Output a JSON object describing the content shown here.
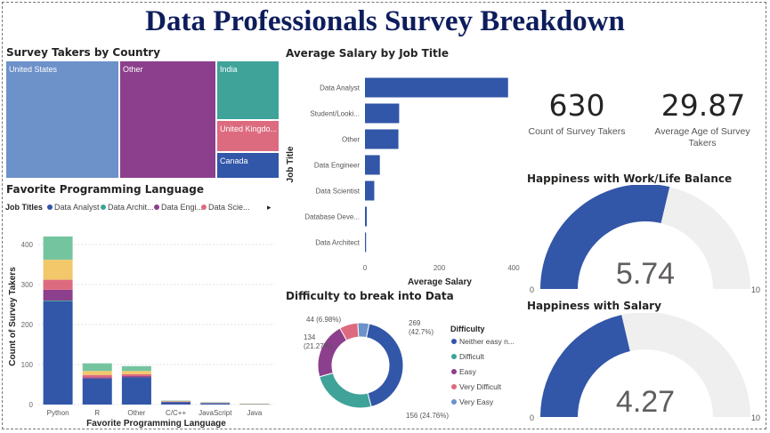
{
  "title": "Data Professionals Survey Breakdown",
  "treemap": {
    "title": "Survey Takers by Country",
    "items": [
      {
        "label": "United States",
        "color": "#6d91c9"
      },
      {
        "label": "Other",
        "color": "#8c3f8c"
      },
      {
        "label": "India",
        "color": "#3fa39a"
      },
      {
        "label": "United Kingdo...",
        "color": "#dd6b7f"
      },
      {
        "label": "Canada",
        "color": "#3256a8"
      }
    ]
  },
  "language_chart": {
    "title": "Favorite Programming Language",
    "legend_title": "Job Titles",
    "legend_more": "▸"
  },
  "salary_chart": {
    "title": "Average Salary by Job Title"
  },
  "kpis": {
    "count_value": "630",
    "count_label": "Count of Survey Takers",
    "age_value": "29.87",
    "age_label_line1": "Average Age of Survey",
    "age_label_line2": "Takers"
  },
  "difficulty_chart": {
    "title": "Difficulty to break into Data",
    "legend_title": "Difficulty"
  },
  "gauges": [
    {
      "title": "Happiness with Work/Life Balance",
      "value": 5.74,
      "value_label": "5.74",
      "min_label": "0",
      "max_label": "10",
      "min": 0,
      "max": 10
    },
    {
      "title": "Happiness with Salary",
      "value": 4.27,
      "value_label": "4.27",
      "min_label": "0",
      "max_label": "10",
      "min": 0,
      "max": 10
    }
  ],
  "chart_data": [
    {
      "type": "treemap",
      "title": "Survey Takers by Country",
      "categories": [
        "United States",
        "Other",
        "India",
        "United Kingdo...",
        "Canada"
      ]
    },
    {
      "type": "bar",
      "stacked": true,
      "title": "Favorite Programming Language",
      "xlabel": "Favorite Programming Language",
      "ylabel": "Count of Survey Takers",
      "ylim": [
        0,
        440
      ],
      "yticks": [
        0,
        100,
        200,
        300,
        400
      ],
      "legend_title": "Job Titles",
      "legend_labels": [
        "Data Analyst",
        "Data Archit...",
        "Data Engi...",
        "Data Scie..."
      ],
      "categories": [
        "Python",
        "R",
        "Other",
        "C/C++",
        "JavaScript",
        "Java"
      ],
      "series": [
        {
          "name": "Data Analyst",
          "color": "#3256a8",
          "values": [
            258,
            65,
            68,
            6,
            3,
            1
          ]
        },
        {
          "name": "Data Architect",
          "color": "#3fa39a",
          "values": [
            2,
            0,
            0,
            0,
            0,
            0
          ]
        },
        {
          "name": "Data Engineer",
          "color": "#8c3f8c",
          "values": [
            27,
            3,
            3,
            1,
            1,
            0
          ]
        },
        {
          "name": "Data Scientist",
          "color": "#dd6b7f",
          "values": [
            25,
            6,
            5,
            1,
            0,
            0
          ]
        },
        {
          "color": "#f2c86b",
          "values": [
            50,
            10,
            8,
            1,
            1,
            1
          ]
        },
        {
          "color": "#74c4a0",
          "values": [
            58,
            19,
            12,
            1,
            1,
            0
          ]
        }
      ]
    },
    {
      "type": "bar",
      "orientation": "horizontal",
      "title": "Average Salary by Job Title",
      "xlabel": "Average Salary",
      "ylabel": "Job Title",
      "xlim": [
        0,
        400
      ],
      "xticks": [
        0,
        200,
        400
      ],
      "categories": [
        "Data Analyst",
        "Student/Looki...",
        "Other",
        "Data Engineer",
        "Data Scientist",
        "Database Deve...",
        "Data Architect"
      ],
      "values": [
        385,
        92,
        90,
        40,
        25,
        5,
        3
      ],
      "color": "#3256a8"
    },
    {
      "type": "pie",
      "donut": true,
      "title": "Difficulty to break into Data",
      "legend_title": "Difficulty",
      "slices": [
        {
          "name": "Neither easy n...",
          "value": 269,
          "label": "269\n(42.7%)",
          "color": "#3256a8"
        },
        {
          "name": "Difficult",
          "value": 156,
          "label": "156 (24.76%)",
          "color": "#3fa39a"
        },
        {
          "name": "Easy",
          "value": 134,
          "label": "134\n(21.27%)",
          "color": "#8c3f8c"
        },
        {
          "name": "Very Difficult",
          "value": 44,
          "label": "44 (6.98%)",
          "color": "#dd6b7f"
        },
        {
          "name": "Very Easy",
          "value": 27,
          "label": "",
          "color": "#6d91c9"
        }
      ]
    }
  ]
}
